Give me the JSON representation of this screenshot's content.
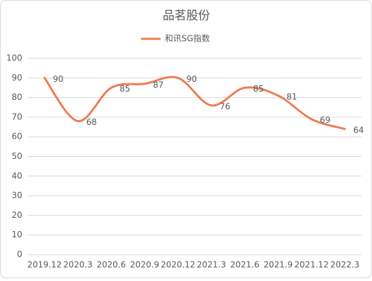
{
  "chart_data": {
    "type": "line",
    "title": "品茗股份",
    "categories": [
      "2019.12",
      "2020.3",
      "2020.6",
      "2020.9",
      "2020.12",
      "2021.3",
      "2021.6",
      "2021.9",
      "2021.12",
      "2022.3"
    ],
    "series": [
      {
        "name": "和讯SG指数",
        "color": "#ed7d55",
        "values": [
          90,
          68,
          85,
          87,
          90,
          76,
          85,
          81,
          69,
          64
        ]
      }
    ],
    "ylim": [
      0,
      100
    ],
    "yticks": [
      0,
      10,
      20,
      30,
      40,
      50,
      60,
      70,
      80,
      90,
      100
    ],
    "grid": true,
    "smooth": true,
    "legend": "top"
  }
}
